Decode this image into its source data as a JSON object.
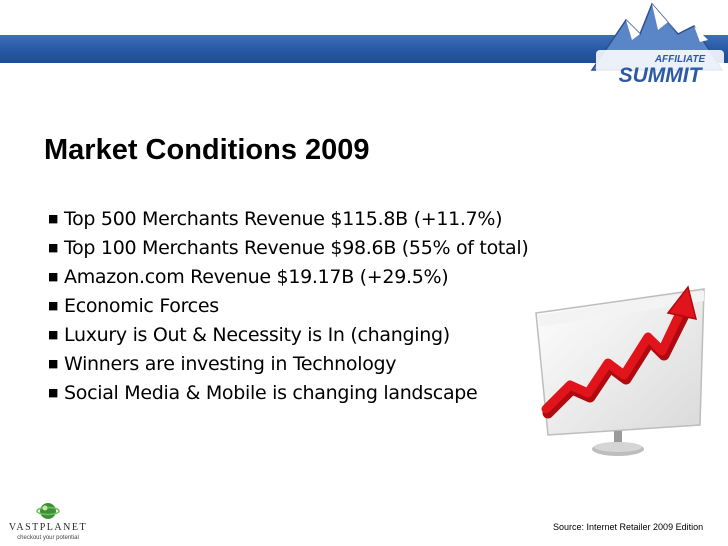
{
  "slide": {
    "title": "Market Conditions 2009",
    "bullets": [
      "Top 500 Merchants Revenue $115.8B (+11.7%)",
      "Top 100 Merchants Revenue $98.6B  (55% of total)",
      "Amazon.com Revenue $19.17B (+29.5%)",
      "Economic Forces",
      "Luxury is Out & Necessity is In (changing)",
      "Winners are investing in Technology",
      "Social Media & Mobile is changing landscape"
    ],
    "bullet_glyph": "■",
    "source": "Source: Internet Retailer 2009 Edition"
  },
  "logos": {
    "top_line1": "AFFILIATE",
    "top_line2": "SUMMIT",
    "bottom_brand": "VASTPLANET",
    "bottom_tagline": "checkout your potential"
  },
  "colors": {
    "band": "#2a5aa6",
    "arrow": "#e0141a",
    "text": "#000000"
  },
  "icons": {
    "bullet": "square-bullet-icon",
    "chart": "rising-arrow-chart-icon",
    "top_logo": "mountain-logo-icon",
    "bottom_logo": "planet-logo-icon"
  }
}
